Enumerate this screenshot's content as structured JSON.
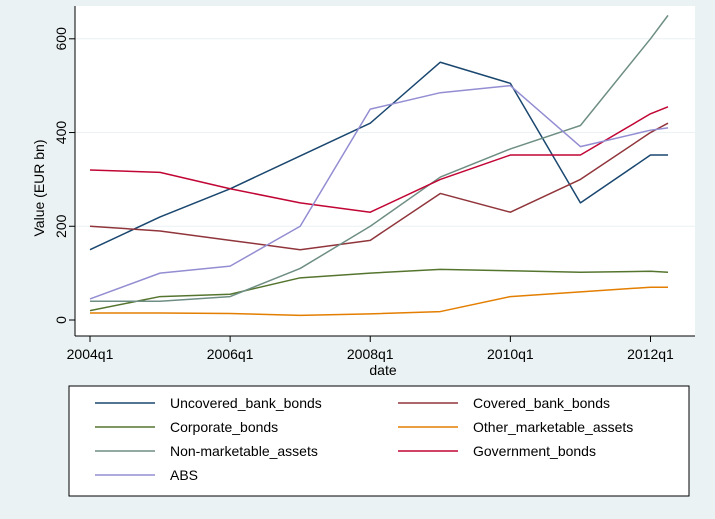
{
  "chart_data": {
    "type": "line",
    "xlabel": "date",
    "ylabel": "Value (EUR bn)",
    "x": [
      "2004q1",
      "2005q1",
      "2006q1",
      "2007q1",
      "2008q1",
      "2009q1",
      "2010q1",
      "2011q1",
      "2012q1",
      "2012q2"
    ],
    "x_index": [
      0,
      4,
      8,
      12,
      16,
      20,
      24,
      28,
      32,
      33
    ],
    "x_ticks": [
      {
        "label": "2004q1",
        "index": 0
      },
      {
        "label": "2006q1",
        "index": 8
      },
      {
        "label": "2008q1",
        "index": 16
      },
      {
        "label": "2010q1",
        "index": 24
      },
      {
        "label": "2012q1",
        "index": 32
      }
    ],
    "y_ticks": [
      0,
      200,
      400,
      600
    ],
    "xlim": [
      0,
      33
    ],
    "ylim": [
      0,
      670
    ],
    "grid": true,
    "legend_placement": "bottom",
    "series": [
      {
        "name": "Uncovered_bank_bonds",
        "color": "#1a476f",
        "values": [
          150,
          220,
          280,
          350,
          420,
          550,
          505,
          250,
          352,
          352
        ]
      },
      {
        "name": "Covered_bank_bonds",
        "color": "#90353b",
        "values": [
          200,
          190,
          170,
          150,
          170,
          270,
          230,
          300,
          400,
          420
        ]
      },
      {
        "name": "Corporate_bonds",
        "color": "#55752f",
        "values": [
          20,
          50,
          55,
          90,
          100,
          108,
          105,
          102,
          104,
          102
        ]
      },
      {
        "name": "Other_marketable_assets",
        "color": "#e37e00",
        "values": [
          15,
          15,
          14,
          10,
          13,
          18,
          50,
          60,
          70,
          70
        ]
      },
      {
        "name": "Non-marketable_assets",
        "color": "#6e8e84",
        "values": [
          40,
          40,
          50,
          110,
          200,
          305,
          365,
          415,
          600,
          650
        ]
      },
      {
        "name": "Government_bonds",
        "color": "#c10534",
        "values": [
          320,
          315,
          280,
          250,
          230,
          300,
          352,
          352,
          440,
          455
        ]
      },
      {
        "name": "ABS",
        "color": "#938dd2",
        "values": [
          45,
          100,
          115,
          200,
          450,
          485,
          500,
          370,
          405,
          410
        ]
      }
    ]
  }
}
